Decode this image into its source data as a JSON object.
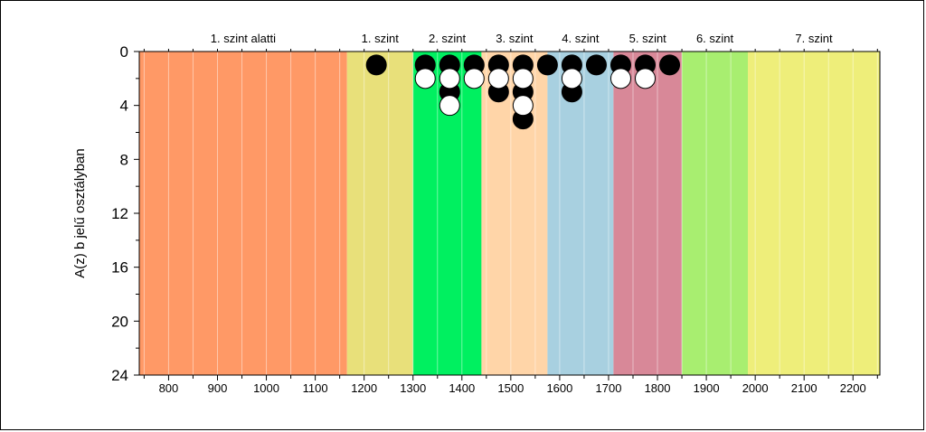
{
  "chart_data": {
    "type": "scatter",
    "title": "",
    "xlabel": "",
    "ylabel": "A(z) b jelű osztályban",
    "xlim": [
      740,
      2255
    ],
    "ylim": [
      0,
      24
    ],
    "y_inverted": true,
    "x_ticks": [
      800,
      900,
      1000,
      1100,
      1200,
      1300,
      1400,
      1500,
      1600,
      1700,
      1800,
      1900,
      2000,
      2100,
      2200
    ],
    "y_ticks": [
      0,
      4,
      8,
      12,
      16,
      20,
      24
    ],
    "grid": true,
    "bands": [
      {
        "label": "1. szint alatti",
        "from": 740,
        "to": 1165,
        "color": "#FF9966"
      },
      {
        "label": "1. szint",
        "from": 1165,
        "to": 1300,
        "color": "#E8E07A"
      },
      {
        "label": "2. szint",
        "from": 1300,
        "to": 1440,
        "color": "#00F060"
      },
      {
        "label": "3. szint",
        "from": 1440,
        "to": 1575,
        "color": "#FFD5A8"
      },
      {
        "label": "4. szint",
        "from": 1575,
        "to": 1710,
        "color": "#A8D0E0"
      },
      {
        "label": "5. szint",
        "from": 1710,
        "to": 1850,
        "color": "#D88898"
      },
      {
        "label": "6. szint",
        "from": 1850,
        "to": 1985,
        "color": "#A8EE70"
      },
      {
        "label": "7. szint",
        "from": 1985,
        "to": 2255,
        "color": "#EEEE7A"
      }
    ],
    "series": [
      {
        "color": "#000000",
        "points": [
          {
            "x": 1225,
            "y": 1
          },
          {
            "x": 1325,
            "y": 1
          },
          {
            "x": 1375,
            "y": 1
          },
          {
            "x": 1375,
            "y": 3
          },
          {
            "x": 1425,
            "y": 1
          },
          {
            "x": 1475,
            "y": 1
          },
          {
            "x": 1475,
            "y": 3
          },
          {
            "x": 1525,
            "y": 1
          },
          {
            "x": 1525,
            "y": 3
          },
          {
            "x": 1525,
            "y": 5
          },
          {
            "x": 1575,
            "y": 1
          },
          {
            "x": 1625,
            "y": 1
          },
          {
            "x": 1625,
            "y": 3
          },
          {
            "x": 1675,
            "y": 1
          },
          {
            "x": 1725,
            "y": 1
          },
          {
            "x": 1775,
            "y": 1
          },
          {
            "x": 1825,
            "y": 1
          }
        ]
      },
      {
        "color": "#ffffff",
        "points": [
          {
            "x": 1325,
            "y": 2
          },
          {
            "x": 1375,
            "y": 2
          },
          {
            "x": 1375,
            "y": 4
          },
          {
            "x": 1425,
            "y": 2
          },
          {
            "x": 1475,
            "y": 2
          },
          {
            "x": 1525,
            "y": 2
          },
          {
            "x": 1525,
            "y": 4
          },
          {
            "x": 1625,
            "y": 2
          },
          {
            "x": 1725,
            "y": 2
          },
          {
            "x": 1775,
            "y": 2
          }
        ]
      }
    ]
  }
}
